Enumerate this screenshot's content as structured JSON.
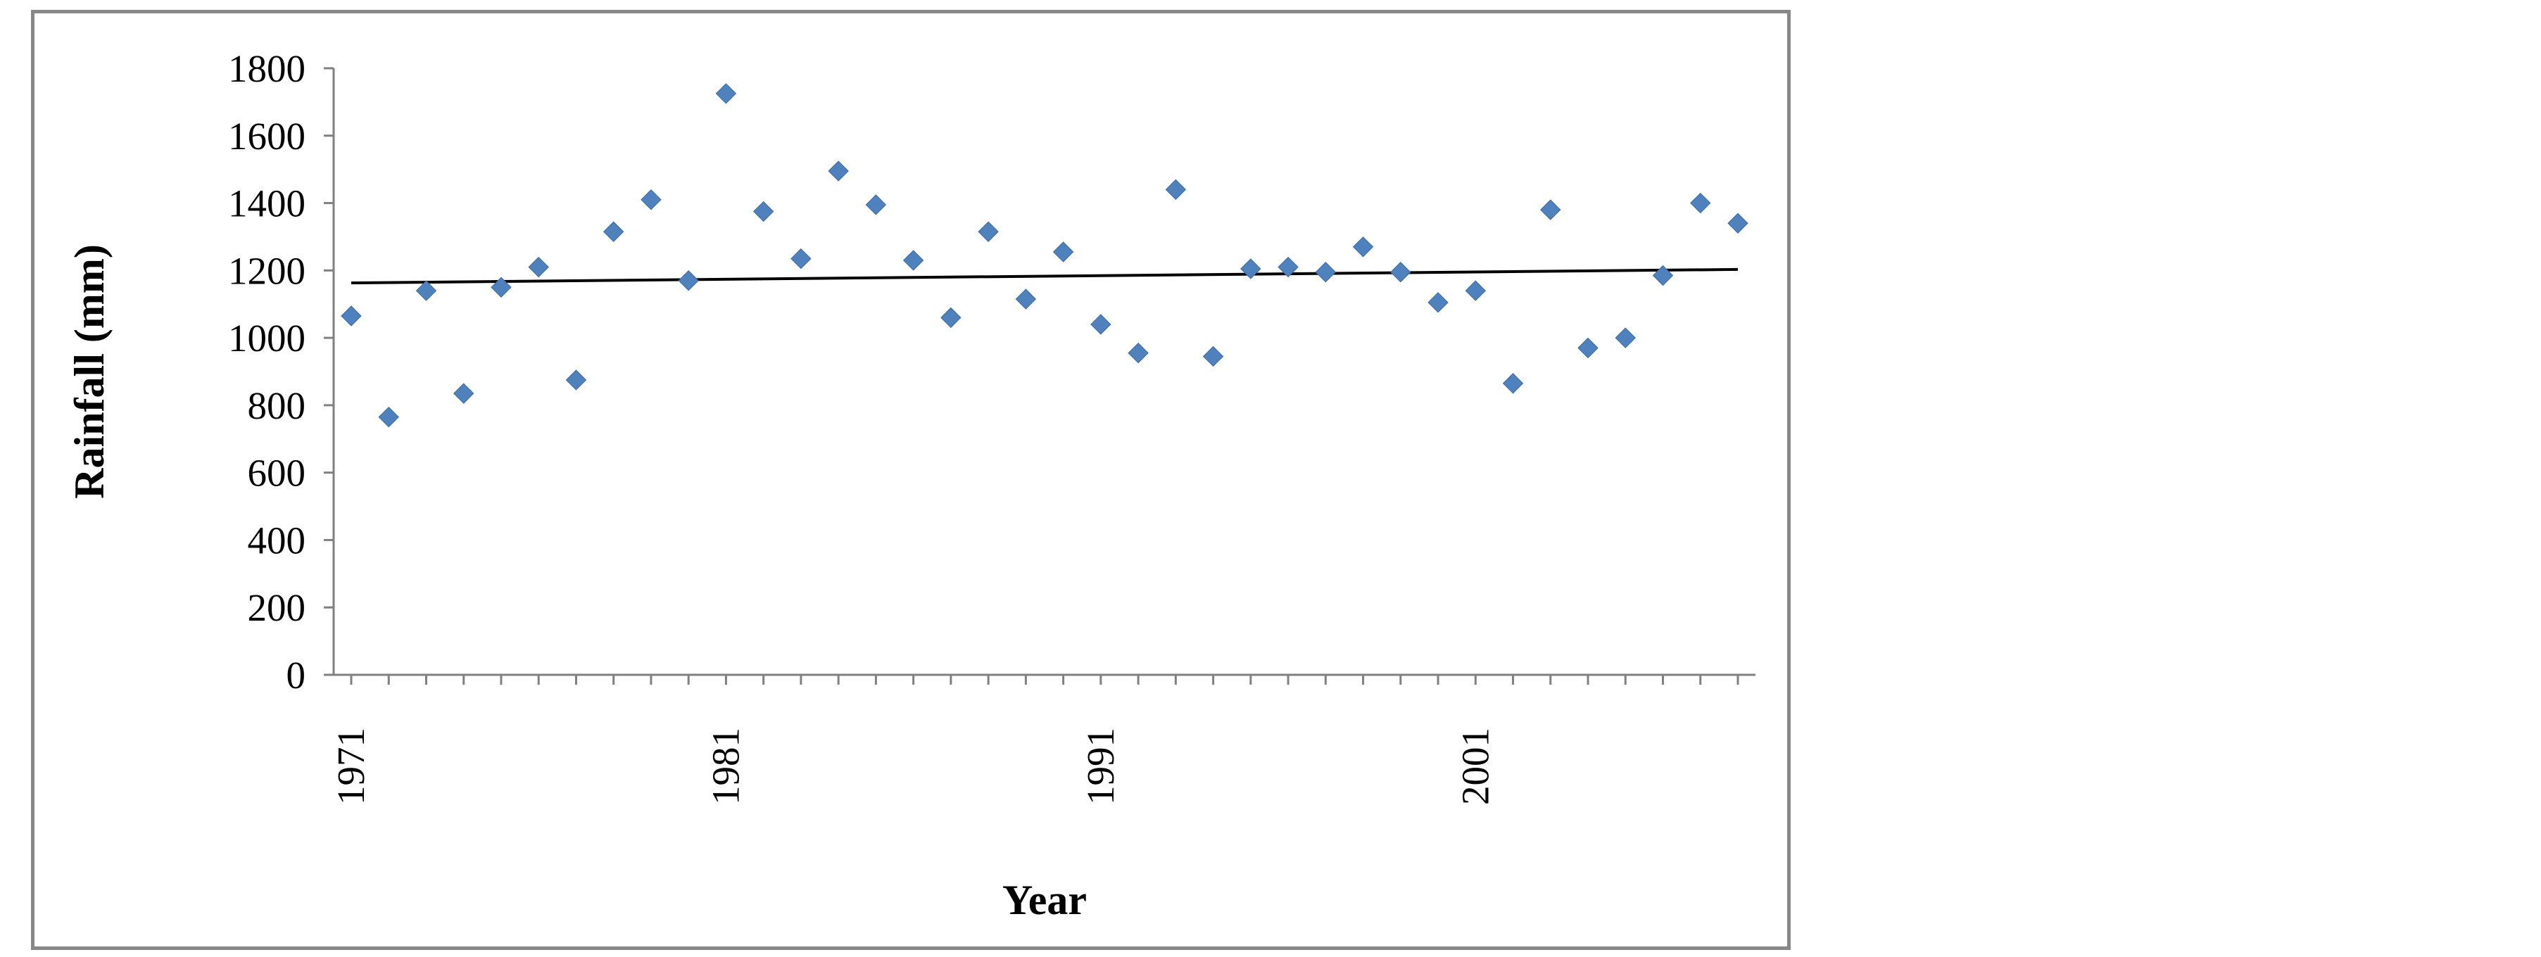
{
  "chart_data": {
    "type": "scatter",
    "xlabel": "Year",
    "ylabel": "Rainfall (mm)",
    "ylim": [
      0,
      1800
    ],
    "yticks": [
      "0",
      "200",
      "400",
      "600",
      "800",
      "1000",
      "1200",
      "1400",
      "1600",
      "1800"
    ],
    "xticks": [
      "1971",
      "1981",
      "1991",
      "2001"
    ],
    "xlim": [
      1971,
      2008
    ],
    "grid": false,
    "legend": "none",
    "marker_color": "#4F81BD",
    "trendline_color": "#000000",
    "series": [
      {
        "x": [
          1971,
          1972,
          1973,
          1974,
          1975,
          1976,
          1977,
          1978,
          1979,
          1980,
          1981,
          1982,
          1983,
          1984,
          1985,
          1986,
          1987,
          1988,
          1989,
          1990,
          1991,
          1992,
          1993,
          1994,
          1995,
          1996,
          1997,
          1998,
          1999,
          2000,
          2001,
          2002,
          2003,
          2004,
          2005,
          2006,
          2007,
          2008
        ],
        "y": [
          1065,
          765,
          1140,
          835,
          1150,
          1210,
          875,
          1315,
          1410,
          1170,
          1725,
          1375,
          1235,
          1495,
          1395,
          1230,
          1060,
          1315,
          1115,
          1255,
          1040,
          955,
          1440,
          945,
          1205,
          1210,
          1195,
          1270,
          1195,
          1105,
          1140,
          865,
          1380,
          970,
          1000,
          1185,
          1400,
          1340
        ]
      }
    ],
    "trendline": {
      "x": [
        1971,
        2008
      ],
      "y": [
        1163,
        1203
      ]
    }
  }
}
